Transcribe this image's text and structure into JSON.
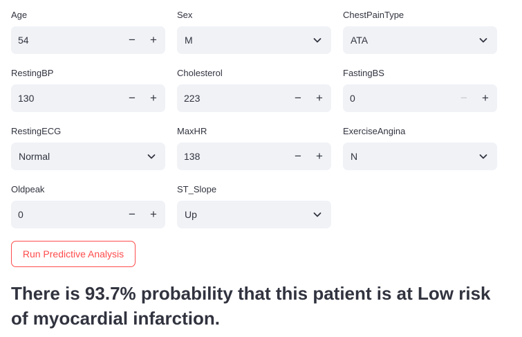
{
  "fields": {
    "age": {
      "label": "Age",
      "value": "54",
      "minus": "−",
      "plus": "+"
    },
    "sex": {
      "label": "Sex",
      "value": "M"
    },
    "chest_pain_type": {
      "label": "ChestPainType",
      "value": "ATA"
    },
    "resting_bp": {
      "label": "RestingBP",
      "value": "130",
      "minus": "−",
      "plus": "+"
    },
    "cholesterol": {
      "label": "Cholesterol",
      "value": "223",
      "minus": "−",
      "plus": "+"
    },
    "fasting_bs": {
      "label": "FastingBS",
      "value": "0",
      "minus": "−",
      "plus": "+"
    },
    "resting_ecg": {
      "label": "RestingECG",
      "value": "Normal"
    },
    "max_hr": {
      "label": "MaxHR",
      "value": "138",
      "minus": "−",
      "plus": "+"
    },
    "exercise_angina": {
      "label": "ExerciseAngina",
      "value": "N"
    },
    "oldpeak": {
      "label": "Oldpeak",
      "value": "0",
      "minus": "−",
      "plus": "+"
    },
    "st_slope": {
      "label": "ST_Slope",
      "value": "Up"
    }
  },
  "actions": {
    "run_label": "Run Predictive Analysis"
  },
  "result": {
    "text": "There is 93.7% probability that this patient is at Low risk of myocardial infarction."
  },
  "colors": {
    "accent": "#ff4b4b",
    "input_bg": "#f0f2f6",
    "text": "#31333f"
  }
}
